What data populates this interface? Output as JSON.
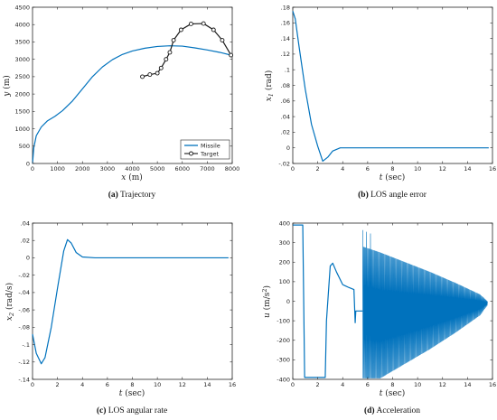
{
  "chart_data": [
    {
      "id": "a",
      "type": "line",
      "caption_letter": "(a)",
      "caption_text": "Trajectory",
      "xlabel": "x (m)",
      "ylabel": "y (m)",
      "xlim": [
        0,
        8000
      ],
      "ylim": [
        0,
        4500
      ],
      "xticks": [
        0,
        1000,
        2000,
        3000,
        4000,
        5000,
        6000,
        7000,
        8000
      ],
      "yticks": [
        0,
        500,
        1000,
        1500,
        2000,
        2500,
        3000,
        3500,
        4000,
        4500
      ],
      "legend": "bottom-right",
      "series": [
        {
          "name": "Missile",
          "color": "#0072BD",
          "marker": "none",
          "points": [
            [
              0,
              0
            ],
            [
              50,
              450
            ],
            [
              150,
              800
            ],
            [
              350,
              1050
            ],
            [
              600,
              1230
            ],
            [
              900,
              1360
            ],
            [
              1200,
              1520
            ],
            [
              1600,
              1800
            ],
            [
              2000,
              2150
            ],
            [
              2400,
              2500
            ],
            [
              2800,
              2780
            ],
            [
              3200,
              2990
            ],
            [
              3600,
              3140
            ],
            [
              4000,
              3240
            ],
            [
              4500,
              3320
            ],
            [
              5000,
              3370
            ],
            [
              5500,
              3390
            ],
            [
              6000,
              3380
            ],
            [
              6500,
              3330
            ],
            [
              7000,
              3270
            ],
            [
              7500,
              3200
            ],
            [
              7950,
              3120
            ]
          ]
        },
        {
          "name": "Target",
          "color": "#1a1a1a",
          "marker": "circle",
          "points": [
            [
              4400,
              2500
            ],
            [
              4700,
              2560
            ],
            [
              5000,
              2600
            ],
            [
              5150,
              2750
            ],
            [
              5350,
              3000
            ],
            [
              5500,
              3200
            ],
            [
              5650,
              3550
            ],
            [
              5950,
              3850
            ],
            [
              6350,
              4020
            ],
            [
              6850,
              4030
            ],
            [
              7250,
              3850
            ],
            [
              7600,
              3550
            ],
            [
              7950,
              3120
            ]
          ]
        }
      ]
    },
    {
      "id": "b",
      "type": "line",
      "caption_letter": "(b)",
      "caption_text": "LOS angle error",
      "xlabel": "t (sec)",
      "ylabel": "x1 (rad)",
      "xlim": [
        0,
        16
      ],
      "ylim": [
        -0.02,
        0.18
      ],
      "xticks": [
        0,
        2,
        4,
        6,
        8,
        10,
        12,
        14,
        16
      ],
      "yticks": [
        -0.02,
        0,
        0.02,
        0.04,
        0.06,
        0.08,
        0.1,
        0.12,
        0.14,
        0.16,
        0.18
      ],
      "series": [
        {
          "color": "#0072BD",
          "points": [
            [
              0,
              0.175
            ],
            [
              0.2,
              0.165
            ],
            [
              0.5,
              0.13
            ],
            [
              1.0,
              0.075
            ],
            [
              1.5,
              0.03
            ],
            [
              2.0,
              0.002
            ],
            [
              2.4,
              -0.017
            ],
            [
              2.8,
              -0.012
            ],
            [
              3.2,
              -0.004
            ],
            [
              3.8,
              0.0
            ],
            [
              5,
              0.0
            ],
            [
              10,
              0.0
            ],
            [
              15.7,
              0.0
            ]
          ]
        }
      ]
    },
    {
      "id": "c",
      "type": "line",
      "caption_letter": "(c)",
      "caption_text": "LOS angular rate",
      "xlabel": "t (sec)",
      "ylabel": "x2 (rad/s)",
      "xlim": [
        0,
        16
      ],
      "ylim": [
        -0.14,
        0.04
      ],
      "xticks": [
        0,
        2,
        4,
        6,
        8,
        10,
        12,
        14,
        16
      ],
      "yticks": [
        -0.14,
        -0.12,
        -0.1,
        -0.08,
        -0.06,
        -0.04,
        -0.02,
        0,
        0.02,
        0.04
      ],
      "series": [
        {
          "color": "#0072BD",
          "points": [
            [
              0,
              -0.088
            ],
            [
              0.3,
              -0.11
            ],
            [
              0.7,
              -0.122
            ],
            [
              1.0,
              -0.115
            ],
            [
              1.5,
              -0.08
            ],
            [
              2.0,
              -0.035
            ],
            [
              2.5,
              0.008
            ],
            [
              2.8,
              0.021
            ],
            [
              3.1,
              0.017
            ],
            [
              3.5,
              0.006
            ],
            [
              4.0,
              0.001
            ],
            [
              5.0,
              0.0
            ],
            [
              10,
              0.0
            ],
            [
              15.7,
              0.0
            ]
          ]
        }
      ]
    },
    {
      "id": "d",
      "type": "line",
      "caption_letter": "(d)",
      "caption_text": "Acceleration",
      "xlabel": "t (sec)",
      "ylabel": "u (m/s2)",
      "xlim": [
        0,
        16
      ],
      "ylim": [
        -400,
        400
      ],
      "xticks": [
        0,
        2,
        4,
        6,
        8,
        10,
        12,
        14,
        16
      ],
      "yticks": [
        -400,
        -300,
        -200,
        -100,
        0,
        100,
        200,
        300,
        400
      ],
      "series": [
        {
          "color": "#0072BD",
          "points": [
            [
              0,
              390
            ],
            [
              0.8,
              390
            ],
            [
              0.95,
              -390
            ],
            [
              2.6,
              -390
            ],
            [
              2.7,
              -100
            ],
            [
              3.0,
              180
            ],
            [
              3.2,
              195
            ],
            [
              3.5,
              150
            ],
            [
              4.0,
              85
            ],
            [
              4.5,
              70
            ],
            [
              4.9,
              60
            ],
            [
              5.0,
              -110
            ],
            [
              5.05,
              -50
            ],
            [
              5.6,
              -50
            ]
          ],
          "oscillation": {
            "t_start": 5.6,
            "t_end": 15.6,
            "envelope": [
              [
                5.6,
                280
              ],
              [
                7.0,
                250
              ],
              [
                9.0,
                200
              ],
              [
                11.0,
                150
              ],
              [
                13.0,
                95
              ],
              [
                15.0,
                35
              ],
              [
                15.6,
                0
              ]
            ]
          }
        }
      ]
    }
  ]
}
